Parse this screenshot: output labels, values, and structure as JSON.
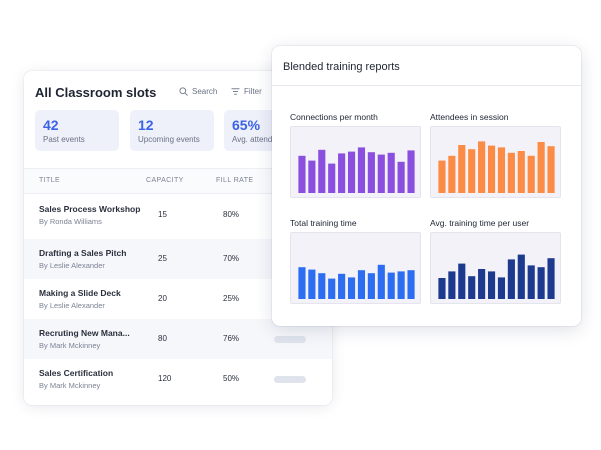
{
  "slots": {
    "title": "All Classroom slots",
    "search_label": "Search",
    "filter_label": "Filter",
    "stats": [
      {
        "value": "42",
        "label": "Past events"
      },
      {
        "value": "12",
        "label": "Upcoming events"
      },
      {
        "value": "65%",
        "label": "Avg. attendance"
      }
    ],
    "columns": [
      "TITLE",
      "CAPACITY",
      "FILL RATE"
    ],
    "rows": [
      {
        "title": "Sales Process Workshop",
        "by": "By Ronda Williams",
        "capacity": "15",
        "fill": "80%"
      },
      {
        "title": "Drafting a Sales Pitch",
        "by": "By Leslie Alexander",
        "capacity": "25",
        "fill": "70%"
      },
      {
        "title": "Making a Slide Deck",
        "by": "By Leslie Alexander",
        "capacity": "20",
        "fill": "25%"
      },
      {
        "title": "Recruting New Mana...",
        "by": "By Mark Mckinney",
        "capacity": "80",
        "fill": "76%"
      },
      {
        "title": "Sales Certification",
        "by": "By Mark Mckinney",
        "capacity": "120",
        "fill": "50%"
      }
    ]
  },
  "reports": {
    "title": "Blended training reports"
  },
  "chart_data": [
    {
      "type": "bar",
      "title": "Connections per month",
      "color": "#8b4fe0",
      "values": [
        6.2,
        5.4,
        7.2,
        4.9,
        6.6,
        6.9,
        7.6,
        6.8,
        6.4,
        6.7,
        5.2,
        7.1
      ],
      "ylim": [
        0,
        10
      ]
    },
    {
      "type": "bar",
      "title": "Attendees in session",
      "color": "#fb8b45",
      "values": [
        5.4,
        6.2,
        8.0,
        7.3,
        8.6,
        7.9,
        7.6,
        6.7,
        7.0,
        6.2,
        8.5,
        7.8
      ],
      "ylim": [
        0,
        10
      ]
    },
    {
      "type": "bar",
      "title": "Total training time",
      "color": "#2c6df2",
      "values": [
        5.3,
        4.9,
        4.3,
        3.4,
        4.2,
        3.6,
        4.8,
        4.3,
        5.7,
        4.4,
        4.6,
        4.8
      ],
      "ylim": [
        0,
        10
      ]
    },
    {
      "type": "bar",
      "title": "Avg. training time per user",
      "color": "#1d3a8f",
      "values": [
        3.5,
        4.6,
        5.9,
        3.8,
        5.0,
        4.6,
        3.6,
        6.6,
        7.4,
        5.6,
        5.3,
        6.8
      ],
      "ylim": [
        0,
        10
      ]
    }
  ]
}
